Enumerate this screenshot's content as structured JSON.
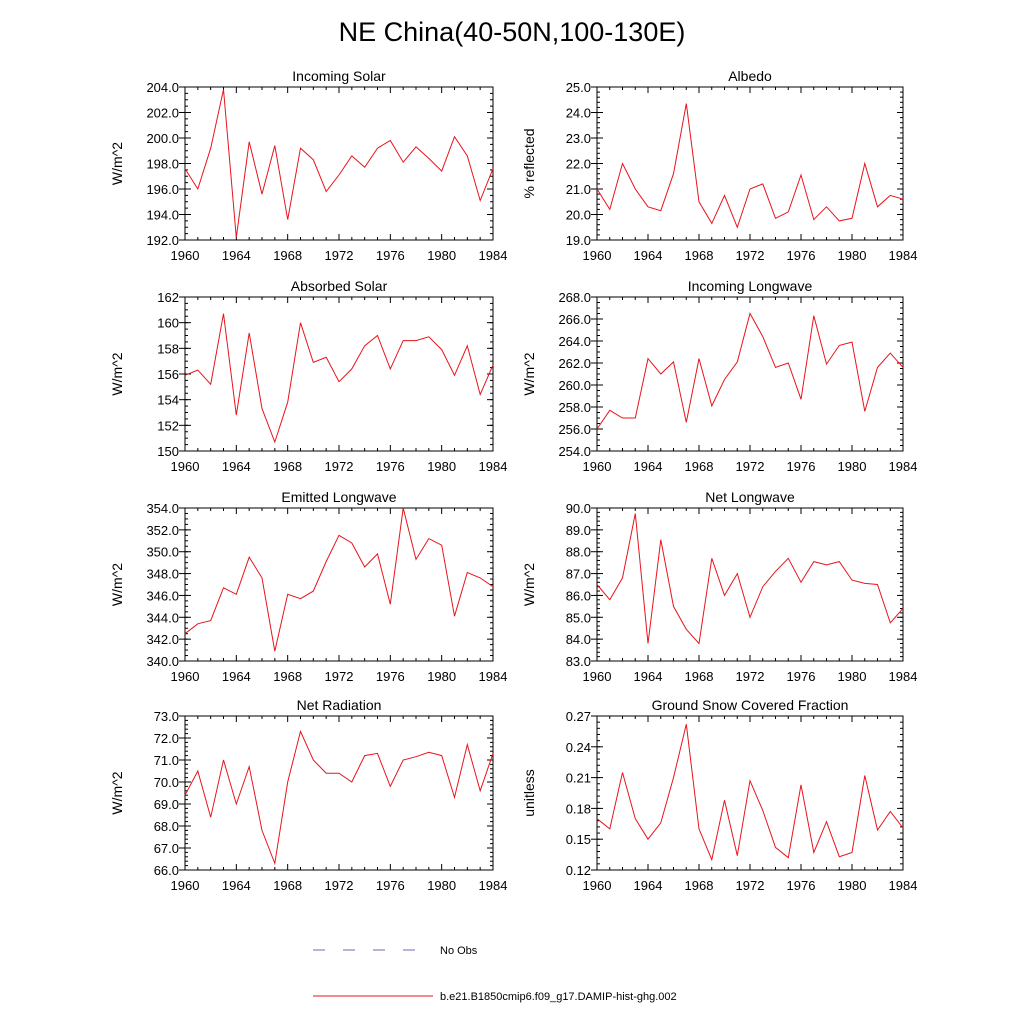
{
  "figure": {
    "title": "NE China(40-50N,100-130E)"
  },
  "legend": {
    "items": [
      {
        "label": "No Obs",
        "color": "#6a6ab8",
        "dash": true
      },
      {
        "label": "b.e21.B1850cmip6.f09_g17.DAMIP-hist-ghg.002",
        "color": "#e8141c",
        "dash": false
      }
    ]
  },
  "chart_data": [
    {
      "type": "line",
      "title": "Incoming Solar",
      "ylabel": "W/m^2",
      "xlim": [
        1960,
        1984
      ],
      "ylim": [
        192,
        204
      ],
      "xticks": [
        1960,
        1964,
        1968,
        1972,
        1976,
        1980,
        1984
      ],
      "yticks": [
        192,
        194,
        196,
        198,
        200,
        202,
        204
      ],
      "ytick_labels": [
        "192.0",
        "194.0",
        "196.0",
        "198.0",
        "200.0",
        "202.0",
        "204.0"
      ],
      "yminor": 0.5,
      "color": "#e8141c",
      "x": [
        1960,
        1961,
        1962,
        1963,
        1964,
        1965,
        1966,
        1967,
        1968,
        1969,
        1970,
        1971,
        1972,
        1973,
        1974,
        1975,
        1976,
        1977,
        1978,
        1979,
        1980,
        1981,
        1982,
        1983,
        1984
      ],
      "y": [
        197.6,
        196.0,
        199.2,
        203.8,
        192.2,
        199.7,
        195.6,
        199.4,
        193.6,
        199.2,
        198.3,
        195.8,
        197.1,
        198.6,
        197.7,
        199.2,
        199.8,
        198.1,
        199.3,
        198.4,
        197.4,
        200.1,
        198.6,
        195.1,
        197.6
      ]
    },
    {
      "type": "line",
      "title": "Albedo",
      "ylabel": "% reflected",
      "xlim": [
        1960,
        1984
      ],
      "ylim": [
        19,
        25
      ],
      "xticks": [
        1960,
        1964,
        1968,
        1972,
        1976,
        1980,
        1984
      ],
      "yticks": [
        19,
        20,
        21,
        22,
        23,
        24,
        25
      ],
      "ytick_labels": [
        "19.0",
        "20.0",
        "21.0",
        "22.0",
        "23.0",
        "24.0",
        "25.0"
      ],
      "yminor": 0.2,
      "color": "#e8141c",
      "x": [
        1960,
        1961,
        1962,
        1963,
        1964,
        1965,
        1966,
        1967,
        1968,
        1969,
        1970,
        1971,
        1972,
        1973,
        1974,
        1975,
        1976,
        1977,
        1978,
        1979,
        1980,
        1981,
        1982,
        1983,
        1984
      ],
      "y": [
        21.0,
        20.2,
        22.0,
        21.0,
        20.3,
        20.15,
        21.6,
        24.35,
        20.5,
        19.65,
        20.75,
        19.5,
        21.0,
        21.2,
        19.85,
        20.1,
        21.55,
        19.8,
        20.3,
        19.75,
        19.85,
        22.0,
        20.3,
        20.75,
        20.6
      ]
    },
    {
      "type": "line",
      "title": "Absorbed Solar",
      "ylabel": "W/m^2",
      "xlim": [
        1960,
        1984
      ],
      "ylim": [
        150,
        162
      ],
      "xticks": [
        1960,
        1964,
        1968,
        1972,
        1976,
        1980,
        1984
      ],
      "yticks": [
        150,
        152,
        154,
        156,
        158,
        160,
        162
      ],
      "ytick_labels": [
        "150",
        "152",
        "154",
        "156",
        "158",
        "160",
        "162"
      ],
      "yminor": 0.5,
      "color": "#e8141c",
      "x": [
        1960,
        1961,
        1962,
        1963,
        1964,
        1965,
        1966,
        1967,
        1968,
        1969,
        1970,
        1971,
        1972,
        1973,
        1974,
        1975,
        1976,
        1977,
        1978,
        1979,
        1980,
        1981,
        1982,
        1983,
        1984
      ],
      "y": [
        155.9,
        156.3,
        155.2,
        160.7,
        152.8,
        159.2,
        153.3,
        150.7,
        153.8,
        160.0,
        156.9,
        157.3,
        155.4,
        156.4,
        158.2,
        159.0,
        156.4,
        158.6,
        158.6,
        158.9,
        157.9,
        155.9,
        158.2,
        154.4,
        156.7
      ]
    },
    {
      "type": "line",
      "title": "Incoming Longwave",
      "ylabel": "W/m^2",
      "xlim": [
        1960,
        1984
      ],
      "ylim": [
        254,
        268
      ],
      "xticks": [
        1960,
        1964,
        1968,
        1972,
        1976,
        1980,
        1984
      ],
      "yticks": [
        254,
        256,
        258,
        260,
        262,
        264,
        266,
        268
      ],
      "ytick_labels": [
        "254.0",
        "256.0",
        "258.0",
        "260.0",
        "262.0",
        "264.0",
        "266.0",
        "268.0"
      ],
      "yminor": 0.5,
      "color": "#e8141c",
      "x": [
        1960,
        1961,
        1962,
        1963,
        1964,
        1965,
        1966,
        1967,
        1968,
        1969,
        1970,
        1971,
        1972,
        1973,
        1974,
        1975,
        1976,
        1977,
        1978,
        1979,
        1980,
        1981,
        1982,
        1983,
        1984
      ],
      "y": [
        256.0,
        257.7,
        257.0,
        257.0,
        262.4,
        261.0,
        262.1,
        256.6,
        262.4,
        258.1,
        260.5,
        262.1,
        266.5,
        264.4,
        261.6,
        262.0,
        258.7,
        266.3,
        261.9,
        263.6,
        263.9,
        257.6,
        261.6,
        262.9,
        261.6
      ]
    },
    {
      "type": "line",
      "title": "Emitted Longwave",
      "ylabel": "W/m^2",
      "xlim": [
        1960,
        1984
      ],
      "ylim": [
        340,
        354
      ],
      "xticks": [
        1960,
        1964,
        1968,
        1972,
        1976,
        1980,
        1984
      ],
      "yticks": [
        340,
        342,
        344,
        346,
        348,
        350,
        352,
        354
      ],
      "ytick_labels": [
        "340.0",
        "342.0",
        "344.0",
        "346.0",
        "348.0",
        "350.0",
        "352.0",
        "354.0"
      ],
      "yminor": 0.5,
      "color": "#e8141c",
      "x": [
        1960,
        1961,
        1962,
        1963,
        1964,
        1965,
        1966,
        1967,
        1968,
        1969,
        1970,
        1971,
        1972,
        1973,
        1974,
        1975,
        1976,
        1977,
        1978,
        1979,
        1980,
        1981,
        1982,
        1983,
        1984
      ],
      "y": [
        342.5,
        343.4,
        343.7,
        346.7,
        346.1,
        349.5,
        347.6,
        340.9,
        346.1,
        345.7,
        346.4,
        349.1,
        351.5,
        350.8,
        348.6,
        349.8,
        345.2,
        354.0,
        349.3,
        351.2,
        350.6,
        344.1,
        348.1,
        347.6,
        346.8
      ]
    },
    {
      "type": "line",
      "title": "Net Longwave",
      "ylabel": "W/m^2",
      "xlim": [
        1960,
        1984
      ],
      "ylim": [
        83,
        90
      ],
      "xticks": [
        1960,
        1964,
        1968,
        1972,
        1976,
        1980,
        1984
      ],
      "yticks": [
        83,
        84,
        85,
        86,
        87,
        88,
        89,
        90
      ],
      "ytick_labels": [
        "83.0",
        "84.0",
        "85.0",
        "86.0",
        "87.0",
        "88.0",
        "89.0",
        "90.0"
      ],
      "yminor": 0.2,
      "color": "#e8141c",
      "x": [
        1960,
        1961,
        1962,
        1963,
        1964,
        1965,
        1966,
        1967,
        1968,
        1969,
        1970,
        1971,
        1972,
        1973,
        1974,
        1975,
        1976,
        1977,
        1978,
        1979,
        1980,
        1981,
        1982,
        1983,
        1984
      ],
      "y": [
        86.5,
        85.8,
        86.8,
        89.75,
        83.8,
        88.55,
        85.5,
        84.45,
        83.8,
        87.7,
        86.0,
        87.0,
        85.0,
        86.4,
        87.1,
        87.7,
        86.6,
        87.55,
        87.4,
        87.55,
        86.7,
        86.55,
        86.5,
        84.75,
        85.4
      ]
    },
    {
      "type": "line",
      "title": "Net Radiation",
      "ylabel": "W/m^2",
      "xlim": [
        1960,
        1984
      ],
      "ylim": [
        66,
        73
      ],
      "xticks": [
        1960,
        1964,
        1968,
        1972,
        1976,
        1980,
        1984
      ],
      "yticks": [
        66,
        67,
        68,
        69,
        70,
        71,
        72,
        73
      ],
      "ytick_labels": [
        "66.0",
        "67.0",
        "68.0",
        "69.0",
        "70.0",
        "71.0",
        "72.0",
        "73.0"
      ],
      "yminor": 0.2,
      "color": "#e8141c",
      "x": [
        1960,
        1961,
        1962,
        1963,
        1964,
        1965,
        1966,
        1967,
        1968,
        1969,
        1970,
        1971,
        1972,
        1973,
        1974,
        1975,
        1976,
        1977,
        1978,
        1979,
        1980,
        1981,
        1982,
        1983,
        1984
      ],
      "y": [
        69.4,
        70.5,
        68.4,
        71.0,
        69.0,
        70.7,
        67.8,
        66.3,
        70.0,
        72.3,
        71.0,
        70.4,
        70.4,
        70.0,
        71.2,
        71.3,
        69.8,
        71.0,
        71.15,
        71.35,
        71.2,
        69.3,
        71.7,
        69.6,
        71.3
      ]
    },
    {
      "type": "line",
      "title": "Ground Snow Covered Fraction",
      "ylabel": "unitless",
      "xlim": [
        1960,
        1984
      ],
      "ylim": [
        0.12,
        0.27
      ],
      "xticks": [
        1960,
        1964,
        1968,
        1972,
        1976,
        1980,
        1984
      ],
      "yticks": [
        0.12,
        0.15,
        0.18,
        0.21,
        0.24,
        0.27
      ],
      "ytick_labels": [
        "0.12",
        "0.15",
        "0.18",
        "0.21",
        "0.24",
        "0.27"
      ],
      "yminor": 0.006,
      "color": "#e8141c",
      "x": [
        1960,
        1961,
        1962,
        1963,
        1964,
        1965,
        1966,
        1967,
        1968,
        1969,
        1970,
        1971,
        1972,
        1973,
        1974,
        1975,
        1976,
        1977,
        1978,
        1979,
        1980,
        1981,
        1982,
        1983,
        1984
      ],
      "y": [
        0.17,
        0.16,
        0.215,
        0.17,
        0.15,
        0.166,
        0.21,
        0.262,
        0.16,
        0.13,
        0.188,
        0.134,
        0.207,
        0.178,
        0.142,
        0.132,
        0.203,
        0.137,
        0.167,
        0.133,
        0.137,
        0.212,
        0.159,
        0.177,
        0.161
      ]
    }
  ]
}
